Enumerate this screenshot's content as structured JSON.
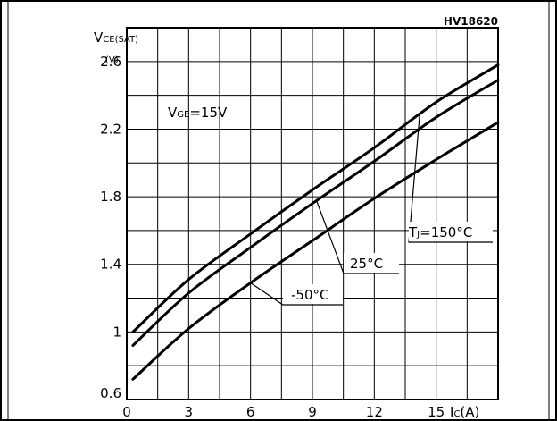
{
  "figure_code": "HV18620",
  "chart_data": {
    "type": "line",
    "ylabel": "V",
    "ylabel_sub": "CE(SAT)",
    "yunit": "(V)",
    "xlabel": "I",
    "xlabel_sub": "C",
    "xunit": "(A)",
    "xlim": [
      0,
      18
    ],
    "ylim": [
      0.6,
      2.8
    ],
    "grid": true,
    "x_ticks": [
      "0",
      "3",
      "6",
      "9",
      "12",
      "15"
    ],
    "x_tick_values": [
      0,
      3,
      6,
      9,
      12,
      15
    ],
    "y_ticks": [
      "0.6",
      "1",
      "1.4",
      "1.8",
      "2.2",
      "2.6"
    ],
    "y_tick_values": [
      0.6,
      1.0,
      1.4,
      1.8,
      2.2,
      2.6
    ],
    "annotations": {
      "condition": {
        "main": "V",
        "sub": "GE",
        "rest": "=15V"
      }
    },
    "series": [
      {
        "name": "T_J=150°C",
        "label_main": "T",
        "label_sub": "J",
        "label_rest": "=150°C",
        "x": [
          0.3,
          3,
          6,
          9,
          12,
          15,
          18
        ],
        "y": [
          1.0,
          1.31,
          1.58,
          1.84,
          2.09,
          2.36,
          2.58
        ]
      },
      {
        "name": "25°C",
        "label_main": "25°C",
        "label_sub": "",
        "label_rest": "",
        "x": [
          0.3,
          3,
          6,
          9,
          12,
          15,
          18
        ],
        "y": [
          0.92,
          1.23,
          1.5,
          1.76,
          2.01,
          2.27,
          2.49
        ]
      },
      {
        "name": "-50°C",
        "label_main": "-50°C",
        "label_sub": "",
        "label_rest": "",
        "x": [
          0.3,
          3,
          6,
          9,
          12,
          15,
          18
        ],
        "y": [
          0.72,
          1.02,
          1.29,
          1.54,
          1.79,
          2.02,
          2.24
        ]
      }
    ]
  }
}
